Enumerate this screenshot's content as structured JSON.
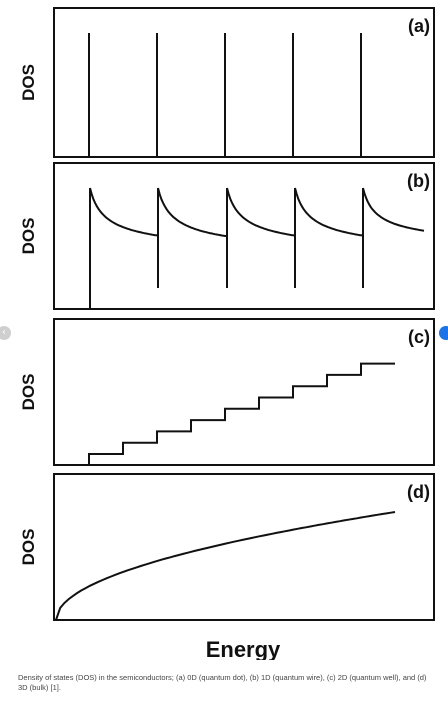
{
  "chart_data": [
    {
      "type": "line",
      "panel_label": "(a)",
      "ylabel": "DOS",
      "series": [
        {
          "kind": "delta-spikes",
          "x": [
            1,
            2,
            3,
            4,
            5
          ]
        }
      ],
      "yticks": false,
      "xticks": false,
      "grid": false
    },
    {
      "type": "line",
      "panel_label": "(b)",
      "ylabel": "DOS",
      "series": [
        {
          "kind": "inverse-sqrt-sawtooth",
          "x": [
            1,
            2,
            3,
            4,
            5
          ]
        }
      ],
      "yticks": false,
      "xticks": false,
      "grid": false
    },
    {
      "type": "line",
      "panel_label": "(c)",
      "ylabel": "DOS",
      "series": [
        {
          "kind": "staircase",
          "x": [
            1,
            2,
            3,
            4,
            5,
            6,
            7,
            8,
            9
          ],
          "y": [
            1,
            2,
            3,
            4,
            5,
            6,
            7,
            8,
            9
          ]
        }
      ],
      "yticks": false,
      "xticks": false,
      "grid": false
    },
    {
      "type": "line",
      "panel_label": "(d)",
      "ylabel": "DOS",
      "xlabel": "Energy",
      "series": [
        {
          "kind": "sqrt-curve"
        }
      ],
      "yticks": false,
      "xticks": false,
      "grid": false
    }
  ],
  "caption": "Density of states (DOS) in the semiconductors; (a) 0D (quantum dot), (b) 1D (quantum wire), (c) 2D (quantum well), and (d) 3D (bulk) [1].",
  "colors": {
    "line": "#111111",
    "frame": "#111111",
    "nav_next": "#1a73e8",
    "nav_prev": "#cfcfcf"
  },
  "icons": {
    "nav_prev": "chevron-left-icon",
    "nav_next": "next-dot-icon"
  },
  "nav_prev_glyph": "‹"
}
